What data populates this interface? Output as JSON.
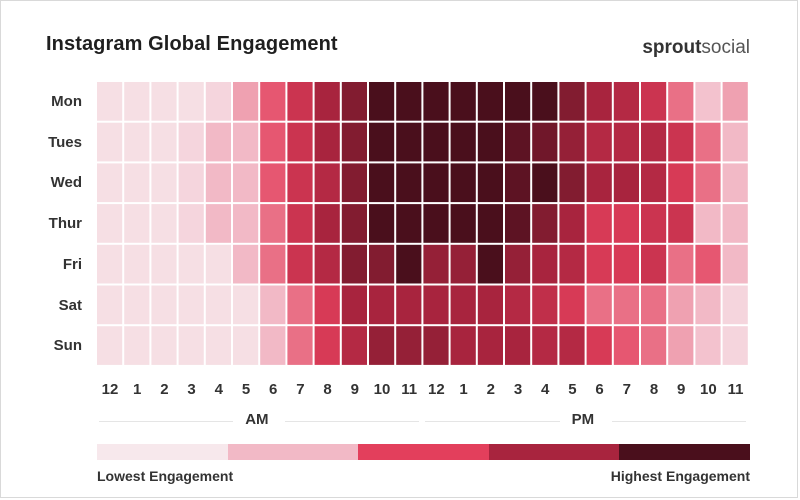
{
  "header": {
    "title": "Instagram Global Engagement",
    "logo_bold": "sprout",
    "logo_light": "social"
  },
  "colors": {
    "level_1": "#f7e8ec",
    "level_2": "#f2b9c6",
    "level_3": "#e33f5c",
    "level_4": "#a8243e",
    "level_5": "#4a0f1c"
  },
  "chart_data": {
    "type": "heatmap",
    "title": "Instagram Global Engagement",
    "rows": [
      "Mon",
      "Tues",
      "Wed",
      "Thur",
      "Fri",
      "Sat",
      "Sun"
    ],
    "columns": [
      "12",
      "1",
      "2",
      "3",
      "4",
      "5",
      "6",
      "7",
      "8",
      "9",
      "10",
      "11",
      "12",
      "1",
      "2",
      "3",
      "4",
      "5",
      "6",
      "7",
      "8",
      "9",
      "10",
      "11"
    ],
    "column_groups": [
      {
        "label": "AM",
        "span": [
          0,
          11
        ]
      },
      {
        "label": "PM",
        "span": [
          12,
          23
        ]
      }
    ],
    "scale": {
      "min": 0,
      "max": 10,
      "low_label": "Lowest Engagement",
      "high_label": "Highest Engagement"
    },
    "values": [
      [
        0.5,
        0.5,
        0.5,
        0.5,
        1,
        3,
        4.5,
        6,
        7.5,
        8.5,
        10,
        10,
        10,
        10,
        10,
        10,
        10,
        8.5,
        7.5,
        7,
        6,
        4,
        2,
        3
      ],
      [
        0.5,
        0.5,
        0.5,
        1,
        2.5,
        2.5,
        4.5,
        6,
        7.5,
        8.5,
        10,
        10,
        10,
        10,
        10,
        9.5,
        9,
        8,
        7,
        7,
        7,
        6,
        4,
        2.5
      ],
      [
        0.5,
        0.5,
        0.5,
        1,
        2.5,
        2.5,
        4.5,
        6,
        7,
        8.5,
        10,
        10,
        10,
        10,
        10,
        9.5,
        10,
        8.5,
        7.5,
        7.5,
        7,
        5.5,
        4,
        2.5
      ],
      [
        0.5,
        0.5,
        0.5,
        1,
        2.5,
        2.5,
        4,
        6,
        7.5,
        8.5,
        10,
        10,
        10,
        10,
        10,
        9.5,
        8.5,
        7.5,
        5.5,
        5.5,
        6,
        6,
        2.5,
        2.5
      ],
      [
        0.5,
        0.5,
        0.5,
        0.5,
        0.5,
        2.5,
        4,
        6,
        7,
        8.5,
        8.5,
        10,
        8,
        8,
        10,
        8,
        7.5,
        7,
        5.5,
        5.5,
        6,
        4,
        4.5,
        2.5
      ],
      [
        0.5,
        0.5,
        0.5,
        0.5,
        0.5,
        0.5,
        2.5,
        4,
        5.5,
        7.5,
        7.5,
        7.5,
        7.5,
        7.5,
        7.5,
        7,
        6.5,
        5.5,
        4,
        4,
        4,
        3,
        2.5,
        1
      ],
      [
        0.5,
        0.5,
        0.5,
        0.5,
        0.5,
        0.5,
        2.5,
        4,
        5.5,
        7,
        8,
        8,
        8,
        7.5,
        7.5,
        7.5,
        7,
        7,
        5.5,
        4.5,
        4,
        3,
        2,
        1
      ]
    ]
  }
}
